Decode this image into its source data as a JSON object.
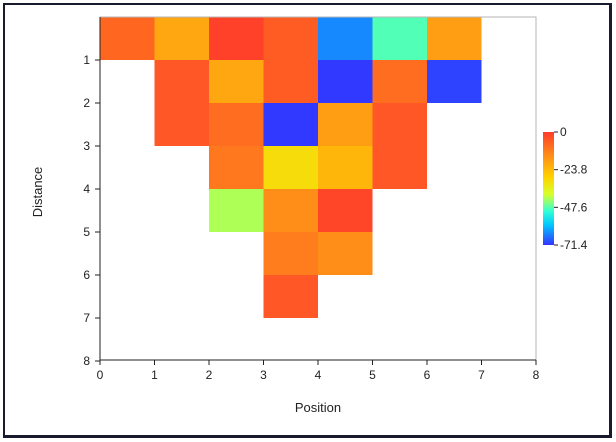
{
  "chart_data": {
    "type": "heatmap",
    "xlabel": "Position",
    "ylabel": "Distance",
    "xlim": [
      0,
      8
    ],
    "ylim": [
      0,
      8
    ],
    "x_ticks": [
      "0",
      "1",
      "2",
      "3",
      "4",
      "5",
      "6",
      "7",
      "8"
    ],
    "y_ticks": [
      "1",
      "2",
      "3",
      "4",
      "5",
      "6",
      "7",
      "8"
    ],
    "colorbar": {
      "min": -71.4,
      "max": 0,
      "tick_labels": [
        "0",
        "-23.8",
        "-47.6",
        "-71.4"
      ],
      "tick_values": [
        0,
        -23.8,
        -47.6,
        -71.4
      ]
    },
    "cells": [
      {
        "x": 0,
        "y": 0,
        "value": -8
      },
      {
        "x": 1,
        "y": 0,
        "value": -20
      },
      {
        "x": 2,
        "y": 0,
        "value": -1
      },
      {
        "x": 3,
        "y": 0,
        "value": -6
      },
      {
        "x": 4,
        "y": 0,
        "value": -64
      },
      {
        "x": 5,
        "y": 0,
        "value": -48
      },
      {
        "x": 6,
        "y": 0,
        "value": -18
      },
      {
        "x": 1,
        "y": 1,
        "value": -5
      },
      {
        "x": 2,
        "y": 1,
        "value": -20
      },
      {
        "x": 3,
        "y": 1,
        "value": -6
      },
      {
        "x": 4,
        "y": 1,
        "value": -71
      },
      {
        "x": 5,
        "y": 1,
        "value": -9
      },
      {
        "x": 6,
        "y": 1,
        "value": -70
      },
      {
        "x": 1,
        "y": 2,
        "value": -5
      },
      {
        "x": 2,
        "y": 2,
        "value": -9
      },
      {
        "x": 3,
        "y": 2,
        "value": -71
      },
      {
        "x": 4,
        "y": 2,
        "value": -18
      },
      {
        "x": 5,
        "y": 2,
        "value": -5
      },
      {
        "x": 2,
        "y": 3,
        "value": -11
      },
      {
        "x": 3,
        "y": 3,
        "value": -31
      },
      {
        "x": 4,
        "y": 3,
        "value": -23
      },
      {
        "x": 5,
        "y": 3,
        "value": -5
      },
      {
        "x": 2,
        "y": 4,
        "value": -42
      },
      {
        "x": 3,
        "y": 4,
        "value": -15
      },
      {
        "x": 4,
        "y": 4,
        "value": -2
      },
      {
        "x": 3,
        "y": 5,
        "value": -12
      },
      {
        "x": 4,
        "y": 5,
        "value": -15
      },
      {
        "x": 3,
        "y": 6,
        "value": -5
      }
    ]
  }
}
